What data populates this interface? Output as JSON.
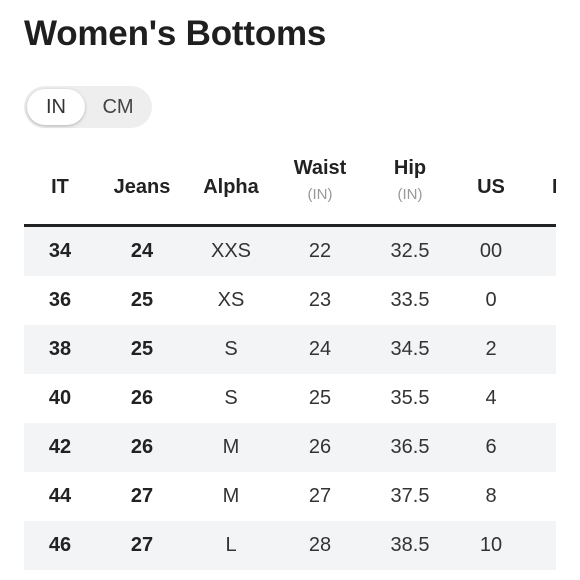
{
  "page": {
    "title": "Women's Bottoms"
  },
  "unit_toggle": {
    "options": [
      "IN",
      "CM"
    ],
    "selected": "IN"
  },
  "table": {
    "headers": [
      {
        "label": "IT",
        "unit": ""
      },
      {
        "label": "Jeans",
        "unit": ""
      },
      {
        "label": "Alpha",
        "unit": ""
      },
      {
        "label": "Waist",
        "unit": "(IN)"
      },
      {
        "label": "Hip",
        "unit": "(IN)"
      },
      {
        "label": "US",
        "unit": ""
      },
      {
        "label": "F",
        "unit": ""
      }
    ],
    "rows": [
      {
        "it": "34",
        "jeans": "24",
        "alpha": "XXS",
        "waist": "22",
        "hip": "32.5",
        "us": "00",
        "f": ""
      },
      {
        "it": "36",
        "jeans": "25",
        "alpha": "XS",
        "waist": "23",
        "hip": "33.5",
        "us": "0",
        "f": ""
      },
      {
        "it": "38",
        "jeans": "25",
        "alpha": "S",
        "waist": "24",
        "hip": "34.5",
        "us": "2",
        "f": ""
      },
      {
        "it": "40",
        "jeans": "26",
        "alpha": "S",
        "waist": "25",
        "hip": "35.5",
        "us": "4",
        "f": ""
      },
      {
        "it": "42",
        "jeans": "26",
        "alpha": "M",
        "waist": "26",
        "hip": "36.5",
        "us": "6",
        "f": ""
      },
      {
        "it": "44",
        "jeans": "27",
        "alpha": "M",
        "waist": "27",
        "hip": "37.5",
        "us": "8",
        "f": ""
      },
      {
        "it": "46",
        "jeans": "27",
        "alpha": "L",
        "waist": "28",
        "hip": "38.5",
        "us": "10",
        "f": ""
      }
    ]
  },
  "colors": {
    "row_shade": "#f3f4f5",
    "header_rule": "#222222",
    "toggle_track": "#eeeeee",
    "unit_text": "#999999"
  }
}
